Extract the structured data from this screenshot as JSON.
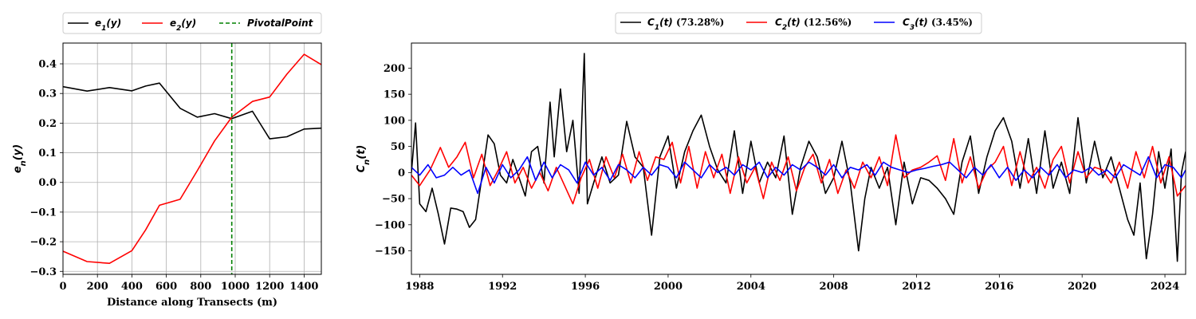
{
  "chart_data": [
    {
      "type": "line",
      "xlabel": "Distance along Transects (m)",
      "ylabel": "e_n(y)",
      "xlim": [
        0,
        1500
      ],
      "ylim": [
        -0.31,
        0.47
      ],
      "grid": true,
      "legend_position": "above",
      "xticks": [
        0,
        200,
        400,
        600,
        800,
        1000,
        1200,
        1400
      ],
      "xtick_labels": [
        "0",
        "200",
        "400",
        "600",
        "800",
        "1000",
        "1200",
        "1400"
      ],
      "yticks": [
        -0.3,
        -0.2,
        -0.1,
        0.0,
        0.1,
        0.2,
        0.3,
        0.4
      ],
      "ytick_labels": [
        "−0.3",
        "−0.2",
        "−0.1",
        "0.0",
        "0.1",
        "0.2",
        "0.3",
        "0.4"
      ],
      "series": [
        {
          "name": "e1(y)",
          "legend_label": "e₁(y)",
          "color": "#000000",
          "x": [
            0,
            140,
            270,
            400,
            480,
            560,
            680,
            780,
            880,
            980,
            1100,
            1200,
            1300,
            1400,
            1500
          ],
          "y": [
            0.323,
            0.308,
            0.32,
            0.309,
            0.325,
            0.335,
            0.25,
            0.22,
            0.232,
            0.215,
            0.24,
            0.147,
            0.154,
            0.18,
            0.183
          ]
        },
        {
          "name": "e2(y)",
          "legend_label": "e₂(y)",
          "color": "#ff0000",
          "x": [
            0,
            140,
            270,
            400,
            480,
            560,
            680,
            780,
            880,
            980,
            1100,
            1200,
            1300,
            1400,
            1500
          ],
          "y": [
            -0.232,
            -0.267,
            -0.273,
            -0.23,
            -0.16,
            -0.077,
            -0.057,
            0.04,
            0.14,
            0.22,
            0.273,
            0.288,
            0.365,
            0.432,
            0.397
          ]
        }
      ],
      "vline": {
        "name": "PivotalPoint",
        "legend_label": "PivotalPoint",
        "x": 980,
        "color": "#008000",
        "style": "dashed"
      }
    },
    {
      "type": "line",
      "xlabel": "",
      "ylabel": "C_n(t)",
      "xlim": [
        1987.6,
        2025.0
      ],
      "ylim": [
        -195,
        248
      ],
      "grid": false,
      "legend_position": "above",
      "xticks": [
        1988,
        1992,
        1996,
        2000,
        2004,
        2008,
        2012,
        2016,
        2020,
        2024
      ],
      "xtick_labels": [
        "1988",
        "1992",
        "1996",
        "2000",
        "2004",
        "2008",
        "2012",
        "2016",
        "2020",
        "2024"
      ],
      "yticks": [
        -150,
        -100,
        -50,
        0,
        50,
        100,
        150,
        200
      ],
      "ytick_labels": [
        "−150",
        "−100",
        "−50",
        "0",
        "50",
        "100",
        "150",
        "200"
      ],
      "series": [
        {
          "name": "C1(t)",
          "legend_label": "C₁(t)",
          "legend_pct": "(73.28%)",
          "color": "#000000",
          "x": [
            1987.6,
            1987.8,
            1988.0,
            1988.3,
            1988.6,
            1988.9,
            1989.2,
            1989.5,
            1989.8,
            1990.1,
            1990.4,
            1990.7,
            1991.0,
            1991.3,
            1991.6,
            1991.9,
            1992.2,
            1992.5,
            1992.8,
            1993.1,
            1993.4,
            1993.7,
            1994.0,
            1994.3,
            1994.5,
            1994.8,
            1995.1,
            1995.4,
            1995.7,
            1995.95,
            1996.1,
            1996.4,
            1996.8,
            1997.2,
            1997.6,
            1998.0,
            1998.4,
            1998.8,
            1999.2,
            1999.6,
            2000.0,
            2000.4,
            2000.8,
            2001.2,
            2001.6,
            2002.0,
            2002.4,
            2002.8,
            2003.2,
            2003.6,
            2004.0,
            2004.4,
            2004.8,
            2005.2,
            2005.6,
            2006.0,
            2006.4,
            2006.8,
            2007.2,
            2007.6,
            2008.0,
            2008.4,
            2008.8,
            2009.2,
            2009.5,
            2009.8,
            2010.2,
            2010.6,
            2011.0,
            2011.4,
            2011.8,
            2012.2,
            2012.6,
            2013.0,
            2013.4,
            2013.8,
            2014.2,
            2014.6,
            2015.0,
            2015.4,
            2015.8,
            2016.2,
            2016.6,
            2017.0,
            2017.4,
            2017.8,
            2018.2,
            2018.6,
            2019.0,
            2019.4,
            2019.8,
            2020.2,
            2020.6,
            2021.0,
            2021.4,
            2021.8,
            2022.2,
            2022.5,
            2022.8,
            2023.1,
            2023.4,
            2023.7,
            2024.0,
            2024.3,
            2024.6,
            2024.8,
            2025.0
          ],
          "y": [
            0,
            95,
            -60,
            -75,
            -30,
            -80,
            -137,
            -68,
            -70,
            -75,
            -105,
            -90,
            -10,
            72,
            55,
            -5,
            -20,
            25,
            -10,
            -45,
            40,
            50,
            -20,
            135,
            30,
            160,
            40,
            100,
            -40,
            228,
            -60,
            -20,
            30,
            -20,
            -5,
            98,
            30,
            10,
            -120,
            30,
            70,
            -30,
            40,
            80,
            110,
            50,
            5,
            -20,
            80,
            -40,
            60,
            -20,
            20,
            -10,
            70,
            -80,
            10,
            60,
            30,
            -40,
            -10,
            60,
            -20,
            -150,
            -50,
            10,
            -30,
            10,
            -100,
            20,
            -60,
            -10,
            -15,
            -30,
            -50,
            -80,
            20,
            70,
            -40,
            30,
            80,
            105,
            60,
            -30,
            65,
            -40,
            80,
            -30,
            20,
            -40,
            105,
            -20,
            60,
            -10,
            30,
            -30,
            -90,
            -120,
            -20,
            -165,
            -80,
            40,
            -30,
            45,
            -170,
            0,
            40
          ]
        },
        {
          "name": "C2(t)",
          "legend_label": "C₂(t)",
          "legend_pct": "(12.56%)",
          "color": "#ff0000",
          "x": [
            1987.6,
            1988.0,
            1988.5,
            1989.0,
            1989.4,
            1989.8,
            1990.2,
            1990.6,
            1991.0,
            1991.4,
            1991.8,
            1992.2,
            1992.6,
            1993.0,
            1993.4,
            1993.8,
            1994.2,
            1994.6,
            1995.0,
            1995.4,
            1995.8,
            1996.2,
            1996.6,
            1997.0,
            1997.4,
            1997.8,
            1998.2,
            1998.6,
            1999.0,
            1999.4,
            1999.8,
            2000.2,
            2000.6,
            2001.0,
            2001.4,
            2001.8,
            2002.2,
            2002.6,
            2003.0,
            2003.4,
            2003.8,
            2004.2,
            2004.6,
            2005.0,
            2005.4,
            2005.8,
            2006.2,
            2006.6,
            2007.0,
            2007.4,
            2007.8,
            2008.2,
            2008.6,
            2009.0,
            2009.4,
            2009.8,
            2010.2,
            2010.6,
            2011.0,
            2011.4,
            2011.8,
            2012.2,
            2012.6,
            2013.0,
            2013.4,
            2013.8,
            2014.2,
            2014.6,
            2015.0,
            2015.4,
            2015.8,
            2016.2,
            2016.6,
            2017.0,
            2017.4,
            2017.8,
            2018.2,
            2018.6,
            2019.0,
            2019.4,
            2019.8,
            2020.2,
            2020.6,
            2021.0,
            2021.4,
            2021.8,
            2022.2,
            2022.6,
            2023.0,
            2023.4,
            2023.8,
            2024.2,
            2024.6,
            2025.0
          ],
          "y": [
            -5,
            -25,
            5,
            48,
            10,
            30,
            58,
            -10,
            35,
            -25,
            5,
            40,
            -20,
            10,
            -30,
            0,
            -35,
            10,
            -25,
            -60,
            -10,
            25,
            -30,
            30,
            -10,
            35,
            -20,
            40,
            -15,
            30,
            25,
            58,
            -20,
            50,
            -30,
            40,
            -10,
            35,
            -40,
            30,
            -20,
            10,
            -50,
            20,
            -15,
            30,
            -35,
            10,
            35,
            -20,
            25,
            -40,
            5,
            -30,
            20,
            -10,
            30,
            -25,
            72,
            -10,
            5,
            10,
            20,
            32,
            -15,
            65,
            -20,
            30,
            -30,
            5,
            20,
            50,
            -25,
            40,
            -20,
            10,
            -30,
            25,
            50,
            -20,
            40,
            -10,
            10,
            5,
            -20,
            20,
            -30,
            40,
            -10,
            50,
            -20,
            30,
            -45,
            -25
          ]
        },
        {
          "name": "C3(t)",
          "legend_label": "C₃(t)",
          "legend_pct": "(3.45%)",
          "color": "#0000ff",
          "x": [
            1987.6,
            1988.0,
            1988.4,
            1988.8,
            1989.2,
            1989.6,
            1990.0,
            1990.4,
            1990.8,
            1991.2,
            1991.6,
            1992.0,
            1992.4,
            1992.8,
            1993.2,
            1993.6,
            1994.0,
            1994.4,
            1994.8,
            1995.2,
            1995.6,
            1996.0,
            1996.4,
            1996.8,
            1997.2,
            1997.6,
            1998.0,
            1998.4,
            1998.8,
            1999.2,
            1999.6,
            2000.0,
            2000.4,
            2000.8,
            2001.2,
            2001.6,
            2002.0,
            2002.4,
            2002.8,
            2003.2,
            2003.6,
            2004.0,
            2004.4,
            2004.8,
            2005.2,
            2005.6,
            2006.0,
            2006.4,
            2006.8,
            2007.2,
            2007.6,
            2008.0,
            2008.4,
            2008.8,
            2009.2,
            2009.6,
            2010.0,
            2010.4,
            2010.8,
            2011.2,
            2011.6,
            2012.0,
            2012.4,
            2012.8,
            2013.2,
            2013.6,
            2014.0,
            2014.4,
            2014.8,
            2015.2,
            2015.6,
            2016.0,
            2016.4,
            2016.8,
            2017.2,
            2017.6,
            2018.0,
            2018.4,
            2018.8,
            2019.2,
            2019.6,
            2020.0,
            2020.4,
            2020.8,
            2021.2,
            2021.6,
            2022.0,
            2022.4,
            2022.8,
            2023.2,
            2023.6,
            2024.0,
            2024.4,
            2024.8,
            2025.0
          ],
          "y": [
            10,
            -5,
            15,
            -10,
            -5,
            10,
            -5,
            5,
            -40,
            10,
            -20,
            15,
            -10,
            5,
            30,
            -15,
            20,
            -10,
            15,
            5,
            -20,
            20,
            -5,
            10,
            -15,
            15,
            5,
            -10,
            10,
            -5,
            15,
            10,
            -10,
            20,
            5,
            -10,
            15,
            0,
            10,
            -5,
            15,
            5,
            20,
            -10,
            10,
            -5,
            15,
            5,
            20,
            10,
            -5,
            15,
            -10,
            10,
            5,
            15,
            -5,
            20,
            10,
            5,
            0,
            5,
            8,
            12,
            15,
            20,
            5,
            -10,
            10,
            -5,
            15,
            -10,
            10,
            -15,
            5,
            -10,
            10,
            -5,
            15,
            -10,
            5,
            0,
            10,
            -5,
            5,
            -10,
            15,
            5,
            -5,
            30,
            -10,
            15,
            10,
            -10,
            5
          ]
        }
      ]
    }
  ]
}
